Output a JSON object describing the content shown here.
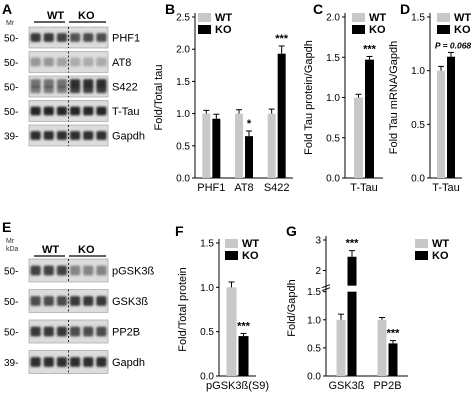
{
  "colors": {
    "wt": "#c8c8c8",
    "ko": "#000000",
    "blot_bg": "#dcdcdc",
    "band": "#1e1e1e"
  },
  "legend": {
    "wt": "WT",
    "ko": "KO"
  },
  "blots": {
    "A": {
      "panel_label": "A",
      "unit": "Mr",
      "group_labels": [
        "WT",
        "KO"
      ],
      "rows": [
        {
          "mw": "50-",
          "label": "PHF1"
        },
        {
          "mw": "50-",
          "label": "AT8"
        },
        {
          "mw": "50-",
          "label": "S422"
        },
        {
          "mw": "50-",
          "label": "T-Tau"
        },
        {
          "mw": "39-",
          "label": "Gapdh"
        }
      ]
    },
    "E": {
      "panel_label": "E",
      "unit": "Mr",
      "unit_sub": "kDa",
      "group_labels": [
        "WT",
        "KO"
      ],
      "rows": [
        {
          "mw": "50-",
          "label": "pGSK3ß"
        },
        {
          "mw": "50-",
          "label": "GSK3ß"
        },
        {
          "mw": "50-",
          "label": "PP2B"
        },
        {
          "mw": "39-",
          "label": "Gapdh"
        }
      ]
    }
  },
  "chart_data": [
    {
      "id": "B",
      "panel_label": "B",
      "type": "bar",
      "ylabel": "Fold/Total tau",
      "ylim": [
        0,
        2.5
      ],
      "yticks": [
        "0.0",
        "0.5",
        "1.0",
        "1.5",
        "2.0",
        "2.5"
      ],
      "categories": [
        "PHF1",
        "AT8",
        "S422"
      ],
      "series": [
        {
          "name": "WT",
          "values": [
            1.0,
            1.0,
            1.0
          ],
          "errors": [
            0.05,
            0.06,
            0.07
          ]
        },
        {
          "name": "KO",
          "values": [
            0.92,
            0.65,
            1.93
          ],
          "errors": [
            0.07,
            0.08,
            0.12
          ]
        }
      ],
      "annotations": [
        {
          "category": "AT8",
          "series": "KO",
          "text": "*"
        },
        {
          "category": "S422",
          "series": "KO",
          "text": "***"
        }
      ],
      "legend": "top-left"
    },
    {
      "id": "C",
      "panel_label": "C",
      "type": "bar",
      "ylabel": "Fold Tau protein/Gapdh",
      "ylim": [
        0,
        2.0
      ],
      "yticks": [
        "0.0",
        "0.5",
        "1.0",
        "1.5",
        "2.0"
      ],
      "categories": [
        "T-Tau"
      ],
      "series": [
        {
          "name": "WT",
          "values": [
            1.0
          ],
          "errors": [
            0.04
          ]
        },
        {
          "name": "KO",
          "values": [
            1.47
          ],
          "errors": [
            0.04
          ]
        }
      ],
      "annotations": [
        {
          "category": "T-Tau",
          "series": "KO",
          "text": "***"
        }
      ],
      "legend": "top-right"
    },
    {
      "id": "D",
      "panel_label": "D",
      "type": "bar",
      "ylabel": "Fold Tau mRNA/Gapdh",
      "ylim": [
        0,
        1.5
      ],
      "yticks": [
        "0.0",
        "0.5",
        "1.0",
        "1.5"
      ],
      "categories": [
        "T-Tau"
      ],
      "series": [
        {
          "name": "WT",
          "values": [
            1.0
          ],
          "errors": [
            0.04
          ]
        },
        {
          "name": "KO",
          "values": [
            1.13
          ],
          "errors": [
            0.04
          ]
        }
      ],
      "annotations": [
        {
          "category": "T-Tau",
          "series": "KO",
          "text": "P = 0.068",
          "italic_prefix": "P"
        }
      ],
      "legend": "top-right"
    },
    {
      "id": "F",
      "panel_label": "F",
      "type": "bar",
      "ylabel": "Fold/Total protein",
      "ylim": [
        0,
        1.5
      ],
      "yticks": [
        "0.0",
        "0.5",
        "1.0",
        "1.5"
      ],
      "categories": [
        "pGSK3ß(S9)"
      ],
      "series": [
        {
          "name": "WT",
          "values": [
            1.0
          ],
          "errors": [
            0.06
          ]
        },
        {
          "name": "KO",
          "values": [
            0.45
          ],
          "errors": [
            0.03
          ]
        }
      ],
      "annotations": [
        {
          "category": "pGSK3ß(S9)",
          "series": "KO",
          "text": "***"
        }
      ],
      "legend": "top-right"
    },
    {
      "id": "G",
      "panel_label": "G",
      "type": "bar",
      "ylabel": "Fold/Gapdh",
      "ylim": [
        0,
        3
      ],
      "axis_break": [
        1.5,
        1.5
      ],
      "yticks": [
        "0.0",
        "0.5",
        "1.0",
        "1.5",
        "2",
        "3"
      ],
      "categories": [
        "GSK3ß",
        "PP2B"
      ],
      "series": [
        {
          "name": "WT",
          "values": [
            1.0,
            1.0
          ],
          "errors": [
            0.1,
            0.04
          ]
        },
        {
          "name": "KO",
          "values": [
            2.45,
            0.58
          ],
          "errors": [
            0.2,
            0.05
          ]
        }
      ],
      "annotations": [
        {
          "category": "GSK3ß",
          "series": "KO",
          "text": "***"
        },
        {
          "category": "PP2B",
          "series": "KO",
          "text": "***"
        }
      ],
      "legend": "top-right"
    }
  ]
}
